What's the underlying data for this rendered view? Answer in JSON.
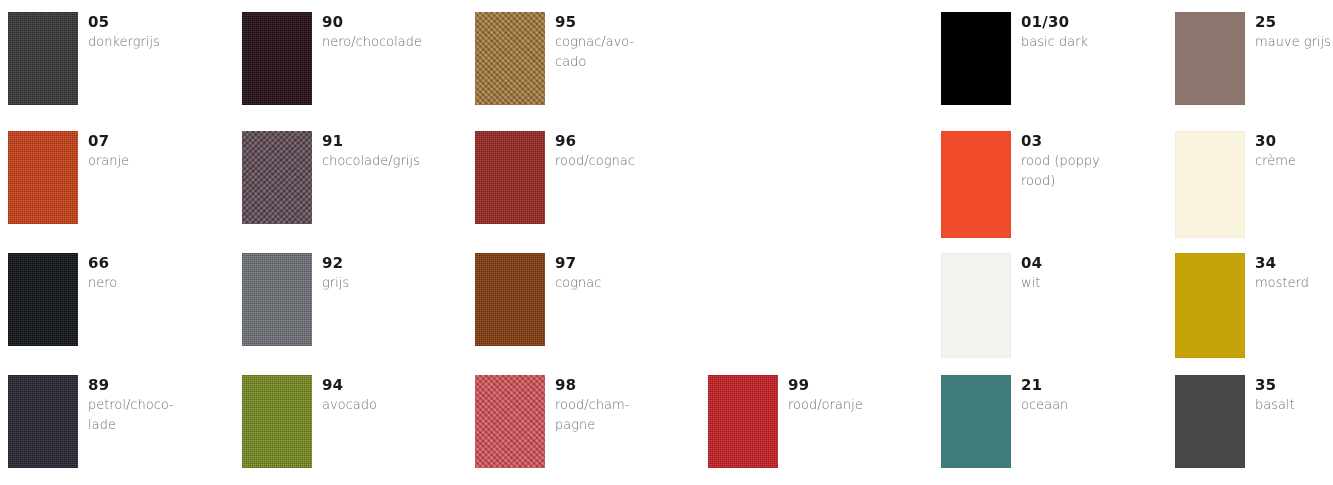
{
  "swatches": [
    {
      "code": "05",
      "name": "donkergrijs",
      "color": "#3b3f3e",
      "texture": "weave"
    },
    {
      "code": "90",
      "name": "nero/chocolade",
      "color": "#2a1418",
      "texture": "weave"
    },
    {
      "code": "95",
      "name": "cognac/avo-\ncado",
      "color": "#a67b3c",
      "texture": "mix"
    },
    {
      "code": "01/30",
      "name": "basic dark",
      "color": "#000000",
      "texture": "plain"
    },
    {
      "code": "25",
      "name": "mauve grijs",
      "color": "#8c756c",
      "texture": "plain"
    },
    {
      "code": "07",
      "name": "oranje",
      "color": "#d9481d",
      "texture": "weave"
    },
    {
      "code": "91",
      "name": "chocolade/grijs",
      "color": "#5f4a55",
      "texture": "mix"
    },
    {
      "code": "96",
      "name": "rood/cognac",
      "color": "#a8302b",
      "texture": "weave"
    },
    {
      "code": "03",
      "name": "rood (poppy\nrood)",
      "color": "#f04b2b",
      "texture": "plain"
    },
    {
      "code": "30",
      "name": "crème",
      "color": "#faf4df",
      "texture": "plain"
    },
    {
      "code": "66",
      "name": "nero",
      "color": "#15181d",
      "texture": "weave"
    },
    {
      "code": "92",
      "name": "grijs",
      "color": "#7a7e84",
      "texture": "weave"
    },
    {
      "code": "97",
      "name": "cognac",
      "color": "#8f4416",
      "texture": "weave"
    },
    {
      "code": "04",
      "name": "wit",
      "color": "#f4f4ef",
      "texture": "plain"
    },
    {
      "code": "34",
      "name": "mosterd",
      "color": "#c4a409",
      "texture": "plain"
    },
    {
      "code": "89",
      "name": "petrol/choco-\nlade",
      "color": "#2f2c3a",
      "texture": "weave"
    },
    {
      "code": "94",
      "name": "avocado",
      "color": "#839a29",
      "texture": "weave"
    },
    {
      "code": "98",
      "name": "rood/cham-\npagne",
      "color": "#d9545a",
      "texture": "mix"
    },
    {
      "code": "99",
      "name": "rood/oranje",
      "color": "#d7242a",
      "texture": "weave"
    },
    {
      "code": "21",
      "name": "oceaan",
      "color": "#417c7c",
      "texture": "plain"
    },
    {
      "code": "35",
      "name": "basalt",
      "color": "#454845",
      "texture": "plain"
    }
  ]
}
